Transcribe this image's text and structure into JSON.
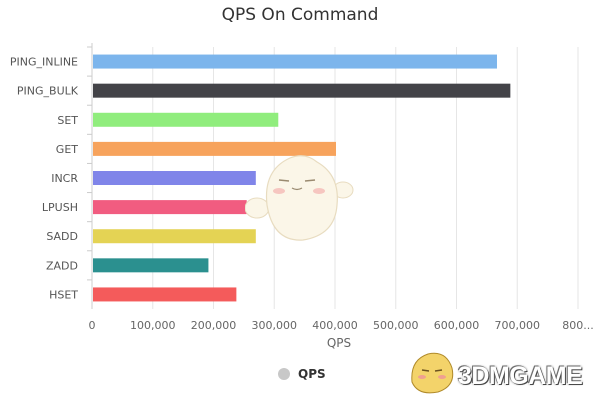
{
  "chart_data": {
    "type": "bar",
    "orientation": "horizontal",
    "title": "QPS On Command",
    "xlabel": "QPS",
    "ylabel": "",
    "categories": [
      "PING_INLINE",
      "PING_BULK",
      "SET",
      "GET",
      "INCR",
      "LPUSH",
      "SADD",
      "ZADD",
      "HSET"
    ],
    "series": [
      {
        "name": "QPS",
        "values": [
          665000,
          687000,
          305000,
          400000,
          268000,
          253000,
          268000,
          190000,
          236000
        ],
        "colors": [
          "#7cb5ec",
          "#434348",
          "#90ed7d",
          "#f7a35c",
          "#8085e9",
          "#f15c80",
          "#e4d354",
          "#2b908f",
          "#f45b5b"
        ]
      }
    ],
    "xlim": [
      0,
      800000
    ],
    "x_ticks": [
      "0",
      "100,000",
      "200,000",
      "300,000",
      "400,000",
      "500,000",
      "600,000",
      "700,000",
      "800..."
    ],
    "grid": "vertical",
    "legend_position": "bottom",
    "legend_color": "#c8c8c8"
  },
  "watermark": {
    "text": "3DMGAME"
  }
}
